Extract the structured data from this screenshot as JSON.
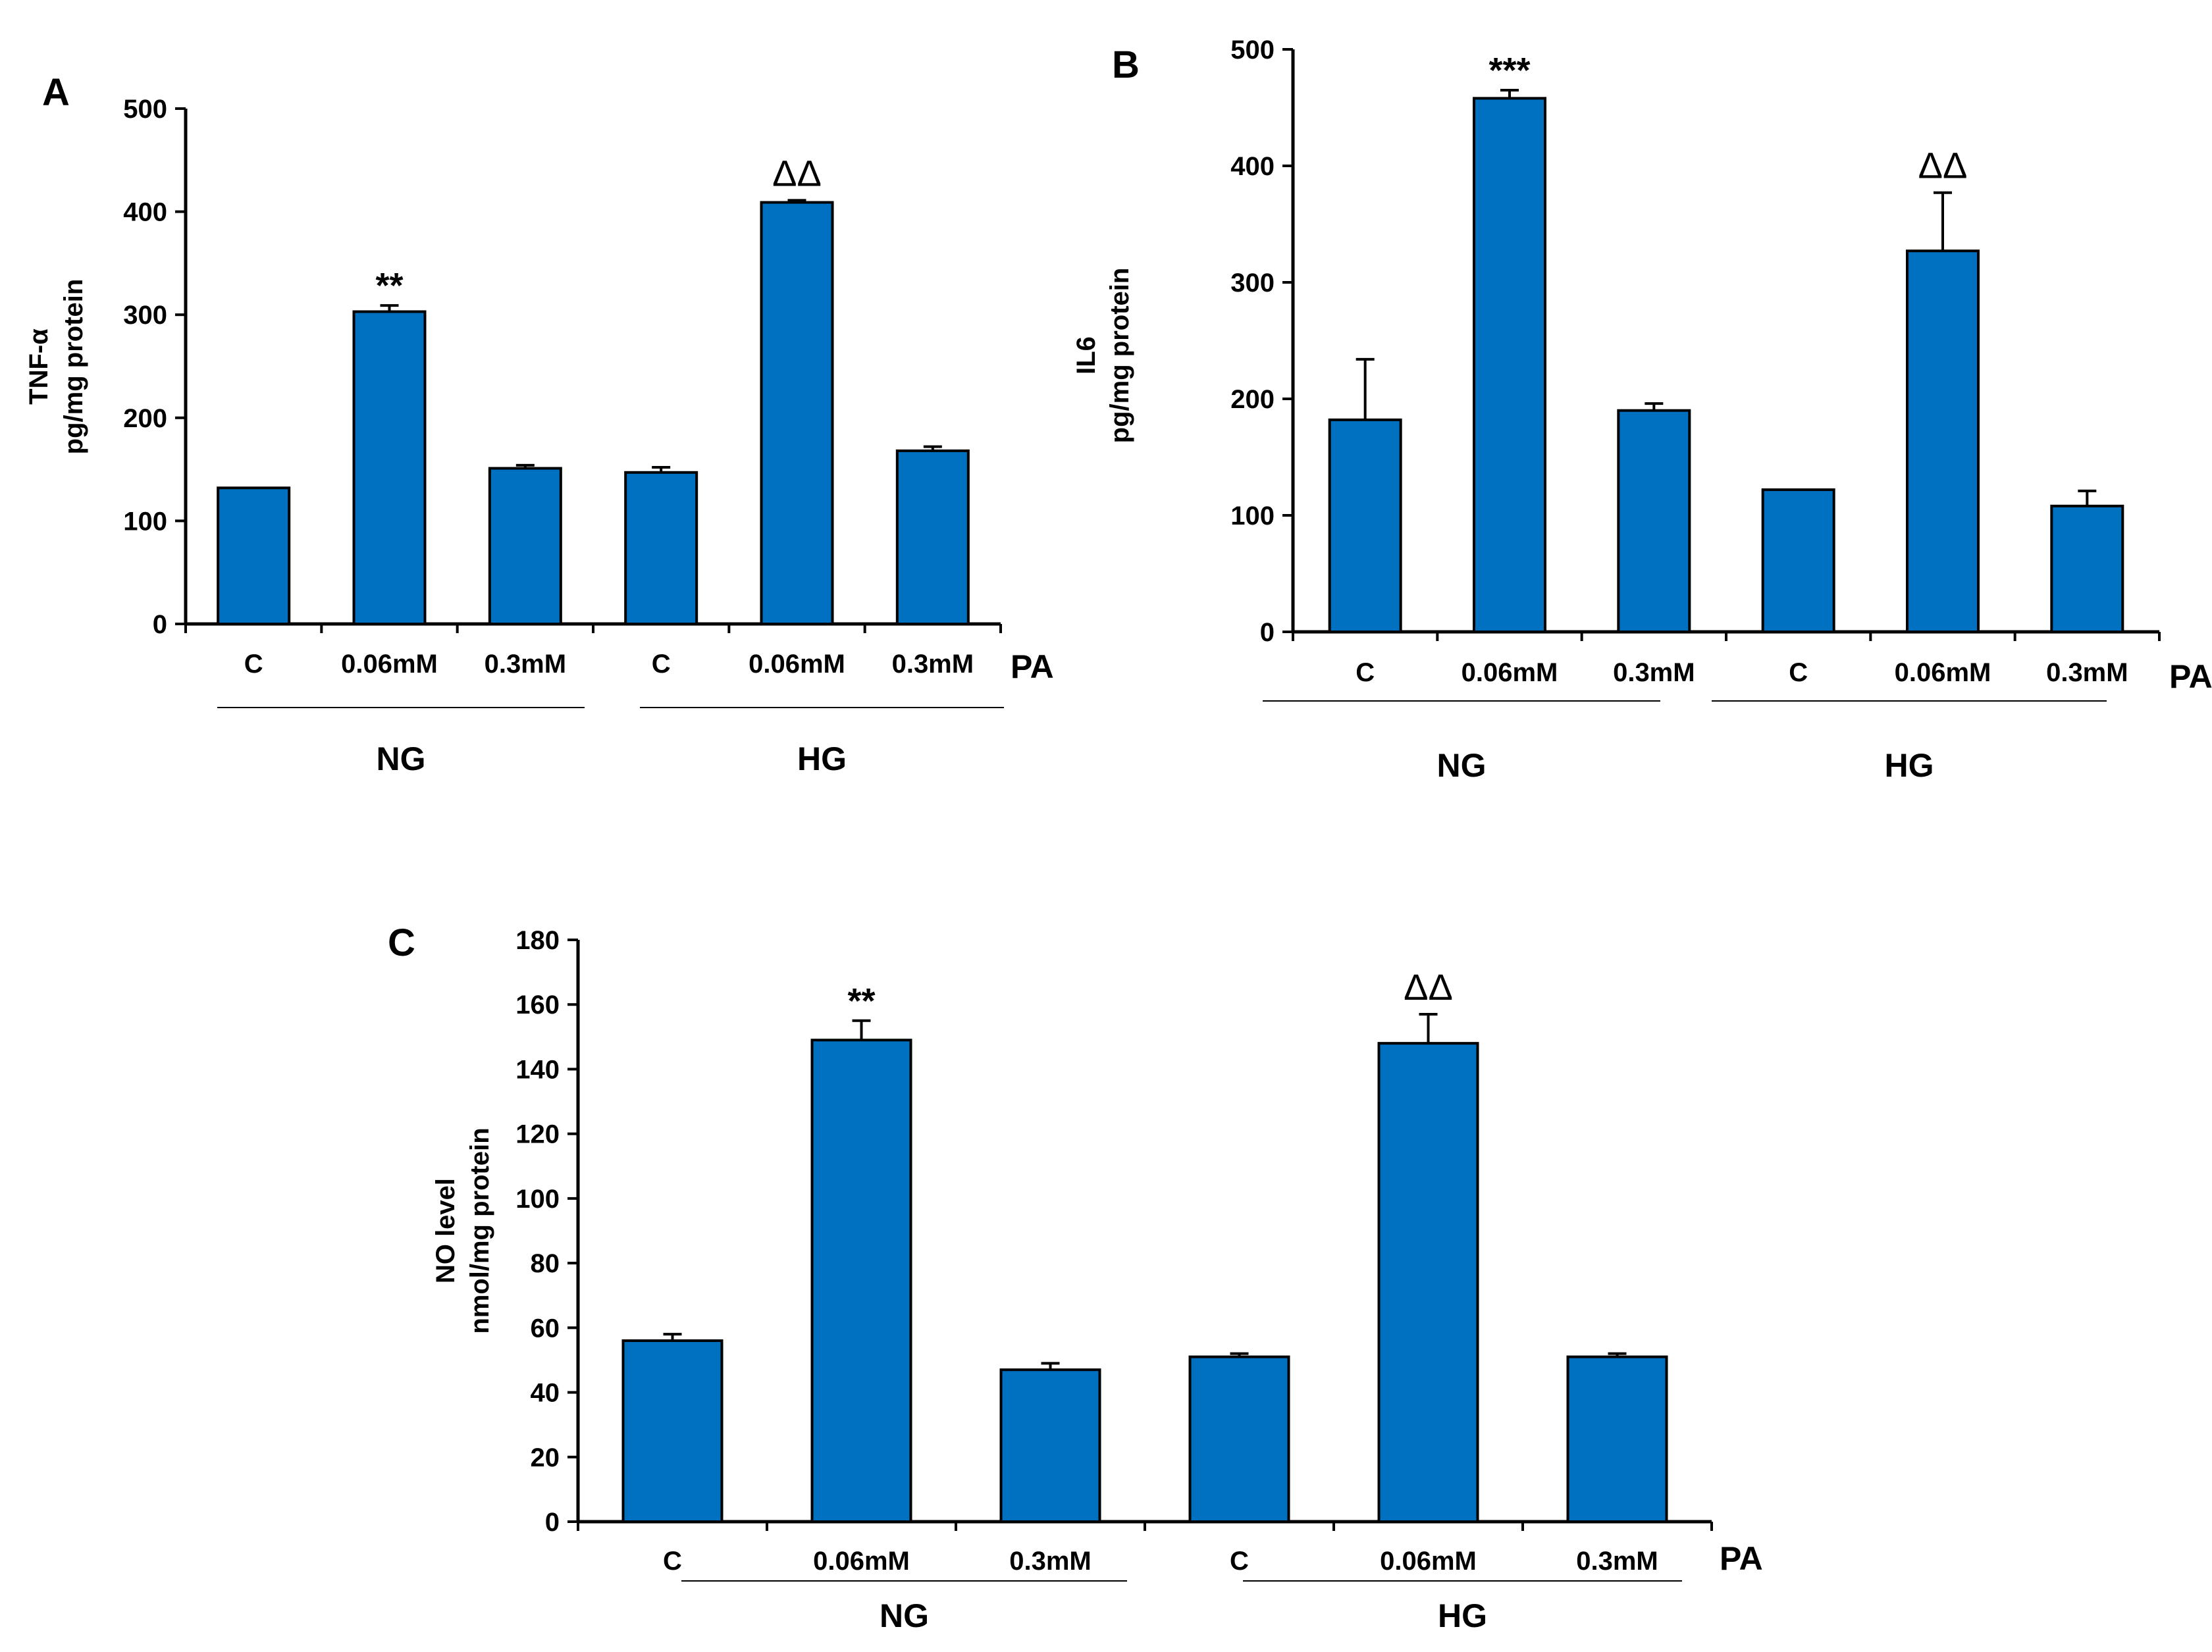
{
  "colors": {
    "bar": "#0070C0",
    "axis": "#000000"
  },
  "chart_data": [
    {
      "id": "A",
      "type": "bar",
      "panel_label": "A",
      "ylabel_lines": [
        "TNF-α",
        "pg/mg protein"
      ],
      "ylim": [
        0,
        500
      ],
      "yticks": [
        0,
        100,
        200,
        300,
        400,
        500
      ],
      "categories": [
        "C",
        "0.06mM",
        "0.3mM",
        "C",
        "0.06mM",
        "0.3mM"
      ],
      "values": [
        132,
        303,
        151,
        147,
        409,
        168
      ],
      "errors": [
        0,
        6,
        3,
        5,
        2,
        4
      ],
      "annotations": [
        "",
        "**",
        "",
        "",
        "ΔΔ",
        ""
      ],
      "factor_label": "PA",
      "groups": [
        {
          "label": "NG"
        },
        {
          "label": "HG"
        }
      ]
    },
    {
      "id": "B",
      "type": "bar",
      "panel_label": "B",
      "ylabel_lines": [
        "IL6",
        "pg/mg protein"
      ],
      "ylim": [
        0,
        500
      ],
      "yticks": [
        0,
        100,
        200,
        300,
        400,
        500
      ],
      "categories": [
        "C",
        "0.06mM",
        "0.3mM",
        "C",
        "0.06mM",
        "0.3mM"
      ],
      "values": [
        182,
        458,
        190,
        122,
        327,
        108
      ],
      "errors": [
        52,
        7,
        6,
        0,
        50,
        13
      ],
      "annotations": [
        "",
        "***",
        "",
        "",
        "ΔΔ",
        ""
      ],
      "factor_label": "PA",
      "groups": [
        {
          "label": "NG"
        },
        {
          "label": "HG"
        }
      ]
    },
    {
      "id": "C",
      "type": "bar",
      "panel_label": "C",
      "ylabel_lines": [
        "NO level",
        "nmol/mg protein"
      ],
      "ylim": [
        0,
        180
      ],
      "yticks": [
        0,
        20,
        40,
        60,
        80,
        100,
        120,
        140,
        160,
        180
      ],
      "categories": [
        "C",
        "0.06mM",
        "0.3mM",
        "C",
        "0.06mM",
        "0.3mM"
      ],
      "values": [
        56,
        149,
        47,
        51,
        148,
        51
      ],
      "errors": [
        2,
        6,
        2,
        1,
        9,
        1
      ],
      "annotations": [
        "",
        "**",
        "",
        "",
        "ΔΔ",
        ""
      ],
      "factor_label": "PA",
      "groups": [
        {
          "label": "NG"
        },
        {
          "label": "HG"
        }
      ]
    }
  ]
}
